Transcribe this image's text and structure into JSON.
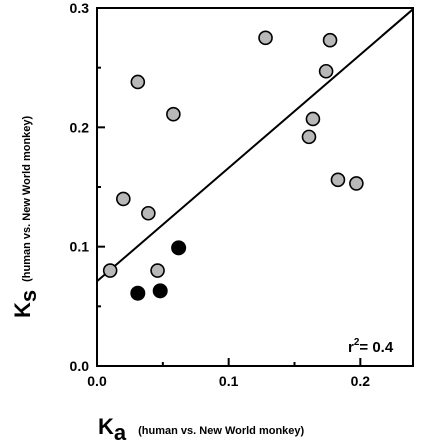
{
  "chart_data": {
    "type": "scatter",
    "title": "",
    "xlim": [
      0,
      0.24
    ],
    "ylim": [
      0,
      0.3
    ],
    "x_ticks": [
      "0.0",
      "0.1",
      "0.2"
    ],
    "y_ticks": [
      "0.0",
      "0.1",
      "0.2",
      "0.3"
    ],
    "x_tick_values": [
      0,
      0.1,
      0.2
    ],
    "y_tick_values": [
      0,
      0.1,
      0.2,
      0.3
    ],
    "xlabel": {
      "main": "K",
      "sub": "a",
      "detail": "(human vs. New World monkey)"
    },
    "ylabel": {
      "main": "K",
      "sub": "s",
      "detail": "(human vs. New World monkey)"
    },
    "annotation": {
      "prefix": "r",
      "exp": "2",
      "suffix": "= 0.4"
    },
    "colors": {
      "gray_fill": "#b8b8b8",
      "black_fill": "#000000",
      "outline": "#000000"
    },
    "series": [
      {
        "marker": "gray-circle",
        "points": [
          {
            "x": 0.01,
            "y": 0.08
          },
          {
            "x": 0.02,
            "y": 0.14
          },
          {
            "x": 0.031,
            "y": 0.238
          },
          {
            "x": 0.039,
            "y": 0.128
          },
          {
            "x": 0.046,
            "y": 0.08
          },
          {
            "x": 0.058,
            "y": 0.211
          },
          {
            "x": 0.128,
            "y": 0.275
          },
          {
            "x": 0.161,
            "y": 0.192
          },
          {
            "x": 0.164,
            "y": 0.207
          },
          {
            "x": 0.174,
            "y": 0.247
          },
          {
            "x": 0.177,
            "y": 0.273
          },
          {
            "x": 0.183,
            "y": 0.156
          },
          {
            "x": 0.197,
            "y": 0.153
          }
        ]
      },
      {
        "marker": "black-circle",
        "points": [
          {
            "x": 0.031,
            "y": 0.061
          },
          {
            "x": 0.048,
            "y": 0.063
          },
          {
            "x": 0.062,
            "y": 0.099
          }
        ]
      }
    ],
    "fit_line": {
      "intercept": 0.071,
      "slope": 0.95
    }
  }
}
